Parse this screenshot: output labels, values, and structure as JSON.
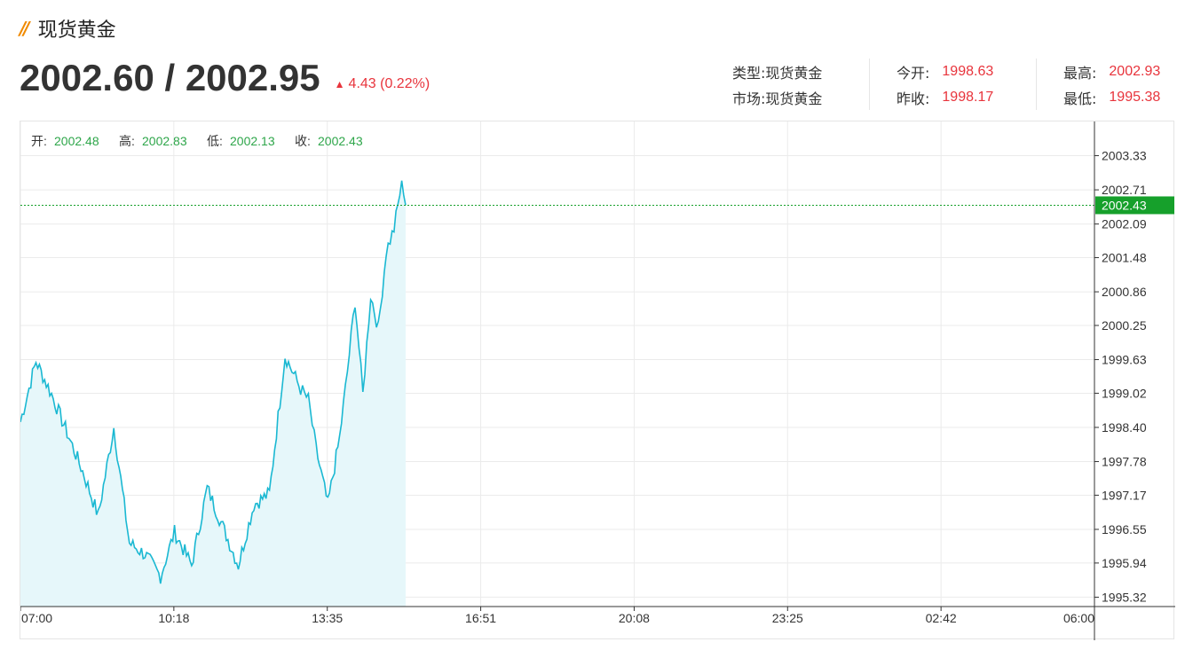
{
  "header": {
    "title": "现货黄金",
    "price": "2002.60 / 2002.95",
    "change": "4.43 (0.22%)"
  },
  "stats": {
    "type_label": "类型:",
    "type_value": "现货黄金",
    "market_label": "市场:",
    "market_value": "现货黄金",
    "open_label": "今开:",
    "open_value": "1998.63",
    "prev_close_label": "昨收:",
    "prev_close_value": "1998.17",
    "high_label": "最高:",
    "high_value": "2002.93",
    "low_label": "最低:",
    "low_value": "1995.38"
  },
  "ohlc": {
    "open_label": "开:",
    "open_value": "2002.48",
    "high_label": "高:",
    "high_value": "2002.83",
    "low_label": "低:",
    "low_value": "2002.13",
    "close_label": "收:",
    "close_value": "2002.43"
  },
  "colors": {
    "line": "#1ab8d2",
    "fill": "#e6f7fa",
    "up": "#e8343c",
    "ohlc_value": "#2ea64a",
    "last_price_tag": "#16a02b"
  },
  "chart_data": {
    "type": "area",
    "title": "",
    "xlabel": "",
    "ylabel": "",
    "x_ticks": [
      "07:00",
      "10:18",
      "13:35",
      "16:51",
      "20:08",
      "23:25",
      "02:42",
      "06:00"
    ],
    "y_ticks": [
      "2003.33",
      "2002.71",
      "2002.09",
      "2001.48",
      "2000.86",
      "2000.25",
      "1999.63",
      "1999.02",
      "1998.40",
      "1997.78",
      "1997.17",
      "1996.55",
      "1995.94",
      "1995.32"
    ],
    "ylim": [
      1995.15,
      2003.95
    ],
    "last_price": "2002.43",
    "series": [
      {
        "x": [
          "07:00",
          "07:20",
          "07:40",
          "08:00",
          "08:20",
          "08:40",
          "09:00",
          "09:20",
          "09:40",
          "10:00",
          "10:18",
          "10:40",
          "11:00",
          "11:20",
          "11:40",
          "12:00",
          "12:20",
          "12:40",
          "13:00",
          "13:10",
          "13:20",
          "13:35",
          "13:50",
          "14:00",
          "14:10",
          "14:20",
          "14:30",
          "14:40",
          "14:50",
          "15:00",
          "15:10",
          "15:15"
        ],
        "values": [
          1998.5,
          1999.6,
          1999.0,
          1998.3,
          1997.6,
          1996.8,
          1998.4,
          1996.3,
          1996.1,
          1995.7,
          1996.5,
          1995.9,
          1997.3,
          1996.6,
          1995.9,
          1997.0,
          1997.2,
          1999.7,
          1999.1,
          1998.9,
          1998.0,
          1997.0,
          1998.2,
          1999.4,
          2000.7,
          1999.0,
          2000.8,
          2000.2,
          2001.6,
          2002.0,
          2002.85,
          2002.43
        ]
      }
    ]
  }
}
